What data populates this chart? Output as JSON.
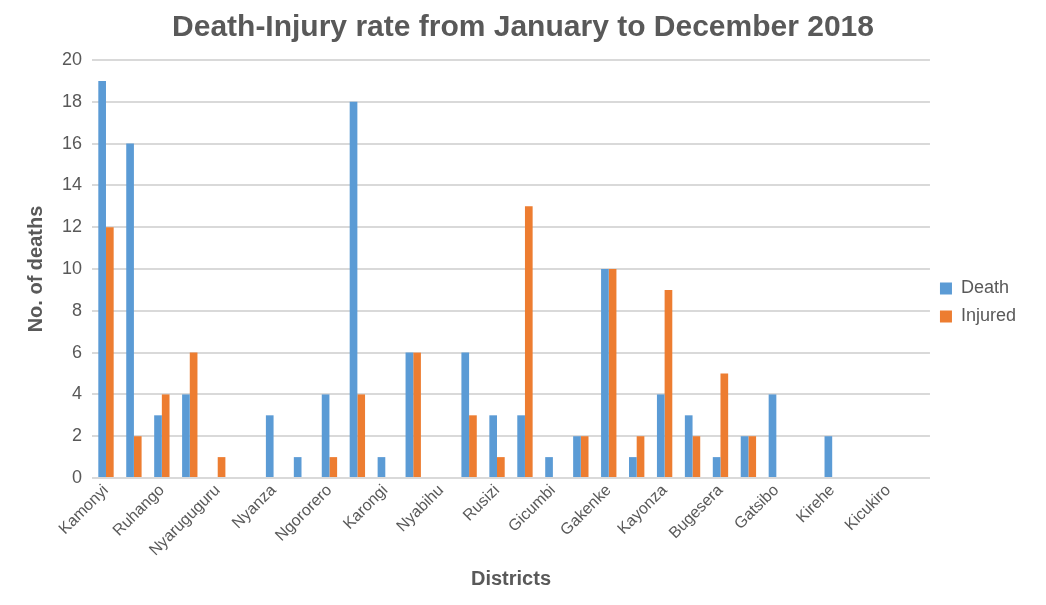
{
  "chart_data": {
    "type": "bar",
    "title": "Death-Injury rate from January to December 2018",
    "xlabel": "Districts",
    "ylabel": "No. of deaths",
    "categories": [
      "Kamonyi",
      null,
      "Ruhango",
      null,
      "Nyaruguguru",
      null,
      "Nyanza",
      null,
      "Ngororero",
      null,
      "Karongi",
      null,
      "Nyabihu",
      null,
      "Rusizi",
      null,
      "Gicumbi",
      null,
      "Gakenke",
      null,
      "Kayonza",
      null,
      "Bugesera",
      null,
      "Gatsibo",
      null,
      "Kirehe",
      null,
      "Kicukiro",
      null
    ],
    "series": [
      {
        "name": "Death",
        "color": "#5b9bd5",
        "values": [
          19,
          16,
          3,
          4,
          0,
          0,
          3,
          1,
          4,
          18,
          1,
          6,
          0,
          6,
          3,
          3,
          1,
          2,
          10,
          1,
          4,
          3,
          1,
          2,
          4,
          0,
          2,
          0,
          0,
          0
        ]
      },
      {
        "name": "Injured",
        "color": "#ed7d31",
        "values": [
          12,
          2,
          4,
          6,
          1,
          0,
          0,
          0,
          1,
          4,
          0,
          6,
          0,
          3,
          1,
          13,
          0,
          2,
          10,
          2,
          9,
          2,
          5,
          2,
          0,
          0,
          0,
          0,
          0,
          0
        ]
      }
    ],
    "ylim": [
      0,
      20
    ],
    "yticks": [
      0,
      2,
      4,
      6,
      8,
      10,
      12,
      14,
      16,
      18,
      20
    ],
    "grid": "y",
    "legend": "right"
  }
}
